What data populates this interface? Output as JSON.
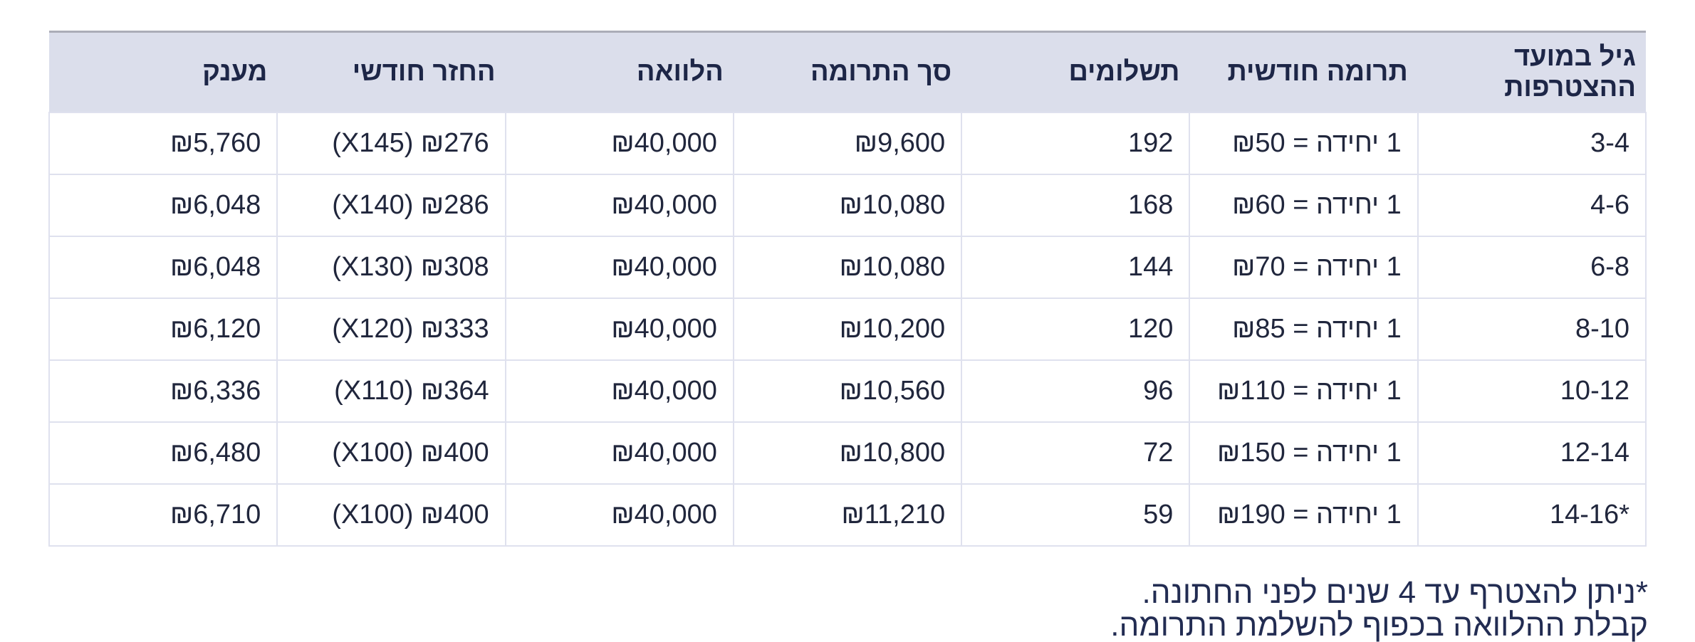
{
  "table": {
    "columns": [
      {
        "key": "age",
        "label": "גיל במועד ההצטרפות"
      },
      {
        "key": "monthly_contribution",
        "label": "תרומה חודשית"
      },
      {
        "key": "payments",
        "label": "תשלומים"
      },
      {
        "key": "total_contribution",
        "label": "סך התרומה"
      },
      {
        "key": "loan",
        "label": "הלוואה"
      },
      {
        "key": "monthly_repayment",
        "label": "החזר חודשי"
      },
      {
        "key": "grant",
        "label": "מענק"
      }
    ],
    "rows": [
      {
        "age": "3-4",
        "monthly_contribution": "1 יחידה = ₪50",
        "payments": "192",
        "total_contribution": "₪9,600",
        "loan": "₪40,000",
        "monthly_repayment": "₪276 (X145)",
        "grant": "₪5,760"
      },
      {
        "age": "4-6",
        "monthly_contribution": "1 יחידה = ₪60",
        "payments": "168",
        "total_contribution": "₪10,080",
        "loan": "₪40,000",
        "monthly_repayment": "₪286 (X140)",
        "grant": "₪6,048"
      },
      {
        "age": "6-8",
        "monthly_contribution": "1 יחידה = ₪70",
        "payments": "144",
        "total_contribution": "₪10,080",
        "loan": "₪40,000",
        "monthly_repayment": "₪308 (X130)",
        "grant": "₪6,048"
      },
      {
        "age": "8-10",
        "monthly_contribution": "1 יחידה = ₪85",
        "payments": "120",
        "total_contribution": "₪10,200",
        "loan": "₪40,000",
        "monthly_repayment": "₪333 (X120)",
        "grant": "₪6,120"
      },
      {
        "age": "10-12",
        "monthly_contribution": "1 יחידה = ₪110",
        "payments": "96",
        "total_contribution": "₪10,560",
        "loan": "₪40,000",
        "monthly_repayment": "₪364 (X110)",
        "grant": "₪6,336"
      },
      {
        "age": "12-14",
        "monthly_contribution": "1 יחידה = ₪150",
        "payments": "72",
        "total_contribution": "₪10,800",
        "loan": "₪40,000",
        "monthly_repayment": "₪400 (X100)",
        "grant": "₪6,480"
      },
      {
        "age": "*14-16",
        "monthly_contribution": "1 יחידה = ₪190",
        "payments": "59",
        "total_contribution": "₪11,210",
        "loan": "₪40,000",
        "monthly_repayment": "₪400 (X100)",
        "grant": "₪6,710"
      }
    ]
  },
  "footnotes": {
    "line1": "*ניתן להצטרף עד 4 שנים לפני החתונה.",
    "line2": "קבלת ההלוואה בכפוף להשלמת התרומה."
  },
  "colors": {
    "page_bg": "#ffffff",
    "header_bg": "#dbdeeb",
    "header_top_border": "#abadb7",
    "grid_line": "#dfe1ee",
    "header_text": "#1d2647",
    "body_text": "#20263c",
    "footnote_text": "#222c52"
  }
}
